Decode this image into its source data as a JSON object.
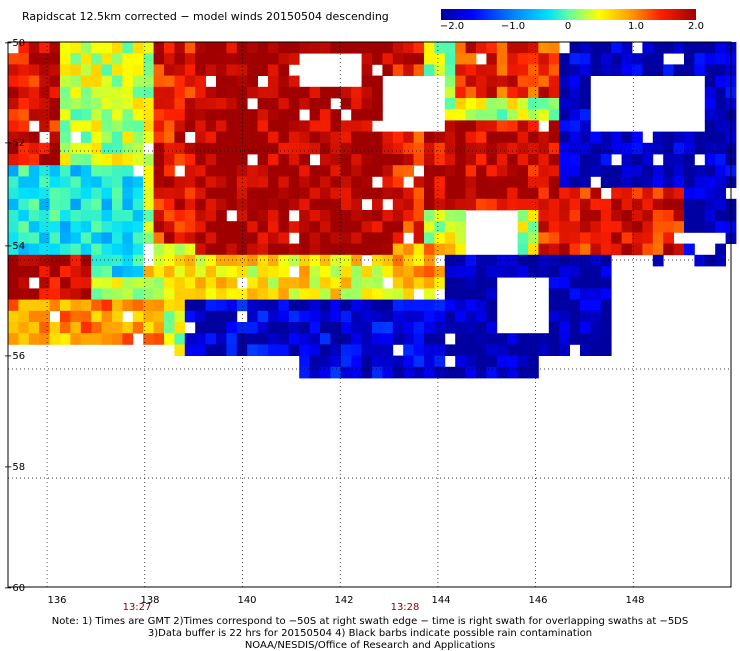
{
  "title": "Rapidscat 12.5km corrected − model winds 20150504 descending",
  "colorbar": {
    "ticks": [
      "−2.0",
      "−1.0",
      "0",
      "1.0",
      "2.0"
    ],
    "tick_values": [
      -2.0,
      -1.0,
      0,
      1.0,
      2.0
    ],
    "colors": [
      "#0000a0",
      "#0000ff",
      "#0080ff",
      "#00e0ff",
      "#60ffa0",
      "#ffff00",
      "#ffa000",
      "#ff2000",
      "#a00000"
    ]
  },
  "map": {
    "lon_range": [
      135.2,
      150
    ],
    "lat_range": [
      -60,
      -50
    ],
    "lat_labels": [
      "−50",
      "−52",
      "−54",
      "−56",
      "−58",
      "−60"
    ],
    "lat_values": [
      -50,
      -52,
      -54,
      -56,
      -58,
      -60
    ],
    "lon_labels": [
      "136",
      "138",
      "140",
      "142",
      "144",
      "146",
      "148"
    ],
    "lon_values": [
      136,
      138,
      140,
      142,
      144,
      146,
      148
    ],
    "swath_times": [
      {
        "label": "13:27",
        "lon": 137.6
      },
      {
        "label": "13:28",
        "lon": 143.2
      }
    ]
  },
  "notes": [
    "Note: 1) Times are GMT 2)Times correspond to −50S at right swath edge − time is right swath for overlapping swaths at −5DS",
    "3)Data buffer is 22 hrs for 20150504 4) Black barbs indicate possible rain contamination",
    "NOAA/NESDIS/Office of Research and Applications"
  ]
}
